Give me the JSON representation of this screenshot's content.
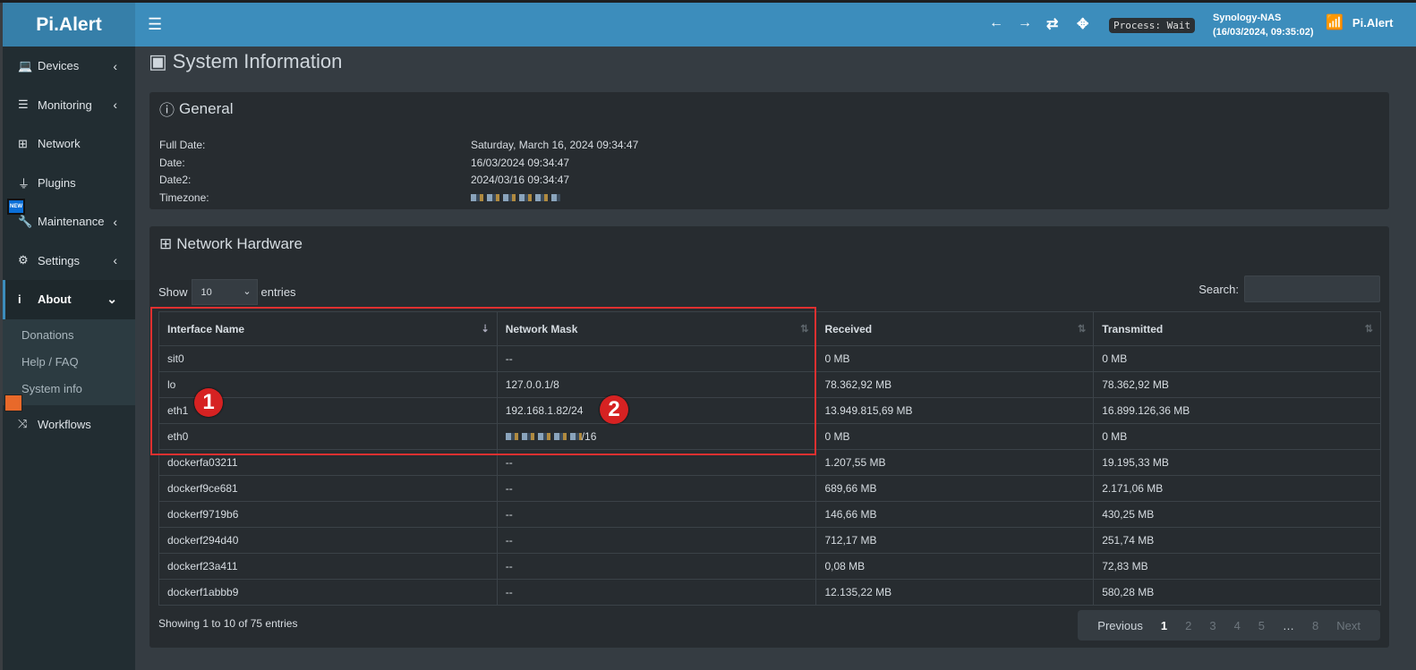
{
  "app": {
    "logo": "Pi.Alert"
  },
  "header": {
    "menu_icon": "hamburger-icon",
    "process": "Process: Wait",
    "host": "Synology-NAS",
    "host_time": "(16/03/2024, 09:35:02)",
    "user": "Pi.Alert",
    "accent": "#3c8dbc"
  },
  "sidebar": {
    "items": [
      {
        "label": "Devices",
        "icon": "laptop-icon"
      },
      {
        "label": "Monitoring",
        "icon": "chart-icon"
      },
      {
        "label": "Network",
        "icon": "network-icon"
      },
      {
        "label": "Plugins",
        "icon": "plug-icon"
      },
      {
        "label": "Maintenance",
        "icon": "wrench-icon"
      },
      {
        "label": "Settings",
        "icon": "gear-icon"
      },
      {
        "label": "About",
        "icon": "info-icon"
      },
      {
        "label": "Workflows",
        "icon": "shuffle-icon"
      }
    ],
    "about_sub": [
      "Donations",
      "Help / FAQ",
      "System info"
    ],
    "new_badge": "NEW"
  },
  "page": {
    "title": "System Information"
  },
  "general": {
    "title": "General",
    "rows": [
      {
        "label": "Full Date:",
        "value": "Saturday, March 16, 2024 09:34:47"
      },
      {
        "label": "Date:",
        "value": "16/03/2024 09:34:47"
      },
      {
        "label": "Date2:",
        "value": "2024/03/16 09:34:47"
      },
      {
        "label": "Timezone:",
        "value": ""
      }
    ]
  },
  "network": {
    "title": "Network Hardware",
    "show": "Show",
    "entries_value": "10",
    "entries": "entries",
    "search": "Search:",
    "columns": [
      "Interface Name",
      "Network Mask",
      "Received",
      "Transmitted"
    ],
    "rows": [
      [
        "sit0",
        "--",
        "0 MB",
        "0 MB"
      ],
      [
        "lo",
        "127.0.0.1/8",
        "78.362,92 MB",
        "78.362,92 MB"
      ],
      [
        "eth1",
        "192.168.1.82/24",
        "13.949.815,69 MB",
        "16.899.126,36 MB"
      ],
      [
        "eth0",
        "/16",
        "0 MB",
        "0 MB"
      ],
      [
        "dockerfa03211",
        "--",
        "1.207,55 MB",
        "19.195,33 MB"
      ],
      [
        "dockerf9ce681",
        "--",
        "689,66 MB",
        "2.171,06 MB"
      ],
      [
        "dockerf9719b6",
        "--",
        "146,66 MB",
        "430,25 MB"
      ],
      [
        "dockerf294d40",
        "--",
        "712,17 MB",
        "251,74 MB"
      ],
      [
        "dockerf23a411",
        "--",
        "0,08 MB",
        "72,83 MB"
      ],
      [
        "dockerf1abbb9",
        "--",
        "12.135,22 MB",
        "580,28 MB"
      ]
    ],
    "info": "Showing 1 to 10 of 75 entries",
    "pager": [
      "Previous",
      "1",
      "2",
      "3",
      "4",
      "5",
      "…",
      "8",
      "Next"
    ]
  },
  "annotations": [
    "1",
    "2"
  ]
}
